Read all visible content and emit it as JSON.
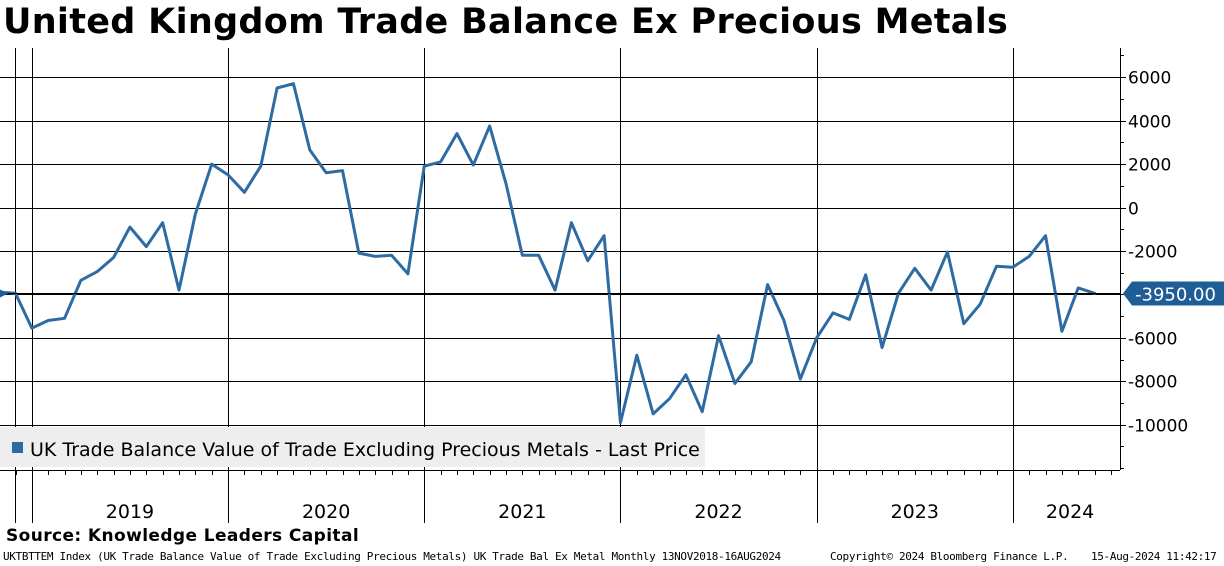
{
  "title": "United Kingdom Trade Balance Ex Precious Metals",
  "source": "Source:  Knowledge Leaders Capital",
  "footer": {
    "ticker": "UKTBTTEM Index (UK Trade Balance Value  of Trade Excluding Precious Metals) UK Trade Bal Ex Metal  Monthly 13NOV2018-16AUG2024",
    "copyright": "Copyright© 2024 Bloomberg Finance L.P.",
    "timestamp": "15-Aug-2024 11:42:17"
  },
  "colors": {
    "line": "#2f6ba3",
    "grid": "#000000",
    "legend_bg": "#eeeeee",
    "label_bg": "#1f5d96"
  },
  "chart_data": {
    "type": "line",
    "title": "United Kingdom Trade Balance Ex Precious Metals",
    "xlabel": "",
    "ylabel": "",
    "ylim": [
      -12000,
      7000
    ],
    "yticks": [
      6000,
      4000,
      2000,
      0,
      -2000,
      -4000,
      -6000,
      -8000,
      -10000
    ],
    "ytick_labels": [
      "6000",
      "4000",
      "2000",
      "0",
      "-2000",
      "-4000",
      "-6000",
      "-8000",
      "-10000"
    ],
    "year_labels": [
      "2019",
      "2020",
      "2021",
      "2022",
      "2023",
      "2024"
    ],
    "legend": "UK Trade Balance Value of Trade Excluding Precious Metals - Last Price",
    "last_value": -3950,
    "last_value_label": "-3950.00",
    "series": [
      {
        "name": "UK Trade Balance Value of Trade Excluding Precious Metals - Last Price",
        "months": [
          "2018-11",
          "2018-12",
          "2019-01",
          "2019-02",
          "2019-03",
          "2019-04",
          "2019-05",
          "2019-06",
          "2019-07",
          "2019-08",
          "2019-09",
          "2019-10",
          "2019-11",
          "2019-12",
          "2020-01",
          "2020-02",
          "2020-03",
          "2020-04",
          "2020-05",
          "2020-06",
          "2020-07",
          "2020-08",
          "2020-09",
          "2020-10",
          "2020-11",
          "2020-12",
          "2021-01",
          "2021-02",
          "2021-03",
          "2021-04",
          "2021-05",
          "2021-06",
          "2021-07",
          "2021-08",
          "2021-09",
          "2021-10",
          "2021-11",
          "2021-12",
          "2022-01",
          "2022-02",
          "2022-03",
          "2022-04",
          "2022-05",
          "2022-06",
          "2022-07",
          "2022-08",
          "2022-09",
          "2022-10",
          "2022-11",
          "2022-12",
          "2023-01",
          "2023-02",
          "2023-03",
          "2023-04",
          "2023-05",
          "2023-06",
          "2023-07",
          "2023-08",
          "2023-09",
          "2023-10",
          "2023-11",
          "2023-12",
          "2024-01",
          "2024-02",
          "2024-03",
          "2024-04",
          "2024-05",
          "2024-06"
        ],
        "values": [
          -3900,
          -3950,
          -5550,
          -5200,
          -5100,
          -3350,
          -2950,
          -2300,
          -900,
          -1800,
          -700,
          -3800,
          -300,
          2000,
          1500,
          700,
          1900,
          5500,
          5700,
          2650,
          1600,
          1700,
          -2100,
          -2250,
          -2200,
          -3050,
          1900,
          2100,
          3400,
          1950,
          3750,
          1100,
          -2200,
          -2200,
          -3800,
          -700,
          -2450,
          -1300,
          -9900,
          -6800,
          -9500,
          -8800,
          -7700,
          -9400,
          -5900,
          -8100,
          -7100,
          -3550,
          -5200,
          -7900,
          -6000,
          -4850,
          -5150,
          -3100,
          -6450,
          -3950,
          -2800,
          -3800,
          -2050,
          -5350,
          -4450,
          -2700,
          -2750,
          -2250,
          -1300,
          -5700,
          -3700,
          -3950
        ]
      }
    ]
  }
}
